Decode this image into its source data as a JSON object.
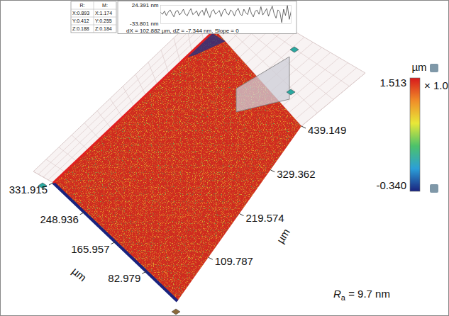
{
  "chart_data": {
    "type": "surface3d",
    "xlabel": "µm",
    "ylabel": "µm",
    "xlim": [
      0,
      331.915
    ],
    "xticks": [
      82.979,
      165.957,
      248.936,
      331.915
    ],
    "ylim": [
      0,
      439.149
    ],
    "yticks": [
      109.787,
      219.574,
      329.362,
      439.149
    ],
    "colorbar": {
      "label": "µm",
      "range": [
        -0.34,
        1.513
      ],
      "ticks": [
        1.513,
        {
          "value": -0.34,
          "label": "-0.340"
        }
      ],
      "multiplier": "× 1.0"
    },
    "annotation": {
      "symbol": "R",
      "subscript": "a",
      "text": " = 9.7 nm"
    },
    "profile": {
      "ylim": [
        -33.801,
        24.391
      ],
      "yticks": [
        {
          "value": 24.391,
          "label": "24.391 nm"
        },
        {
          "value": -33.801,
          "label": "-33.801 nm"
        }
      ],
      "values": [
        2,
        -4,
        6,
        -8,
        3,
        10,
        -2,
        -12,
        5,
        8,
        -6,
        1,
        12,
        -3,
        -9,
        4,
        14,
        -5,
        0,
        7,
        -10,
        3,
        9,
        -7,
        16,
        -2,
        -14,
        5,
        11,
        -4,
        2,
        8,
        -11,
        6,
        13,
        -1,
        -6,
        10,
        4,
        -9,
        7,
        15,
        -3,
        -8,
        12,
        1,
        -5,
        18,
        -2,
        -12,
        6,
        9,
        -4,
        20,
        -6,
        3,
        14,
        -10,
        8,
        22,
        -3,
        -16,
        10,
        4,
        -30,
        12,
        -8,
        24,
        -20,
        6
      ],
      "caption": "dX = 102.882 µm, dZ = -7.344 nm, Slope = 0"
    },
    "readout": {
      "header": [
        "R:",
        "M:"
      ],
      "rows": [
        [
          "X:0.893",
          "X:1.174"
        ],
        [
          "Y:0.412",
          "Y:0.255"
        ],
        [
          "Z:0.188",
          "Z:0.184"
        ]
      ]
    }
  }
}
